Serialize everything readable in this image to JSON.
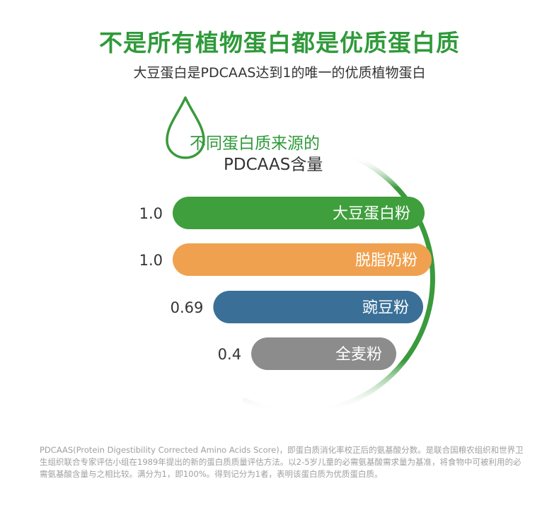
{
  "header": {
    "title": "不是所有植物蛋白都是优质蛋白质",
    "subtitle": "大豆蛋白是PDCAAS达到1的唯一的优质植物蛋白"
  },
  "chart_data": {
    "type": "bar",
    "orientation": "horizontal",
    "title_line1": "不同蛋白质来源的",
    "title_line2": "PDCAAS含量",
    "categories": [
      "大豆蛋白粉",
      "脱脂奶粉",
      "豌豆粉",
      "全麦粉"
    ],
    "values": [
      1.0,
      1.0,
      0.69,
      0.4
    ],
    "value_labels": [
      "1.0",
      "1.0",
      "0.69",
      "0.4"
    ],
    "colors": [
      "#3f9f3c",
      "#f0a14f",
      "#3a7098",
      "#8c8c8c"
    ],
    "xlim": [
      0,
      1.0
    ],
    "grid": false,
    "legend": "none"
  },
  "footnote": "PDCAAS(Protein Digestibility Corrected Amino Acids Score)，即蛋白质消化率校正后的氨基酸分数。是联合国粮农组织和世界卫生组织联合专家评估小组在1989年提出的新的蛋白质质量评估方法。以2-5岁儿童的必需氨基酸需求量为基准，将食物中可被利用的必需氨基酸含量与之相比较。满分为1，即100%。得到记分为1者，表明该蛋白质为优质蛋白质。"
}
